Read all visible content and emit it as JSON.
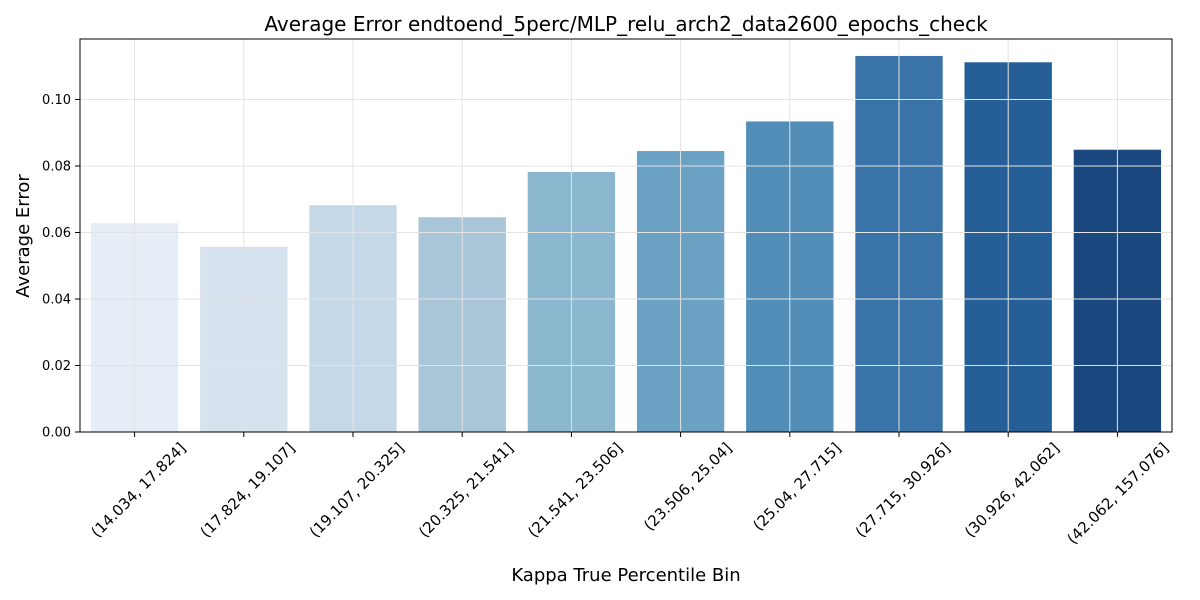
{
  "chart_data": {
    "type": "bar",
    "title": "Average Error endtoend_5perc/MLP_relu_arch2_data2600_epochs_check",
    "xlabel": "Kappa True Percentile Bin",
    "ylabel": "Average Error",
    "categories": [
      "(14.034, 17.824]",
      "(17.824, 19.107]",
      "(19.107, 20.325]",
      "(20.325, 21.541]",
      "(21.541, 23.506]",
      "(23.506, 25.04]",
      "(25.04, 27.715]",
      "(27.715, 30.926]",
      "(30.926, 42.062]",
      "(42.062, 157.076]"
    ],
    "values": [
      0.0628,
      0.0557,
      0.0682,
      0.0646,
      0.0782,
      0.0845,
      0.0934,
      0.1131,
      0.1112,
      0.0849
    ],
    "colors": [
      "#e6edf6",
      "#d6e2ee",
      "#c5d8e7",
      "#a9c6d8",
      "#8ab6ce",
      "#6ba2c4",
      "#518db6",
      "#3973a7",
      "#265f98",
      "#1a477e"
    ],
    "ylim": [
      0,
      0.1182
    ],
    "yticks": [
      "0.00",
      "0.02",
      "0.04",
      "0.06",
      "0.08",
      "0.10"
    ],
    "ytick_values": [
      0,
      0.02,
      0.04,
      0.06,
      0.08,
      0.1
    ],
    "grid": true,
    "legend": "none"
  }
}
